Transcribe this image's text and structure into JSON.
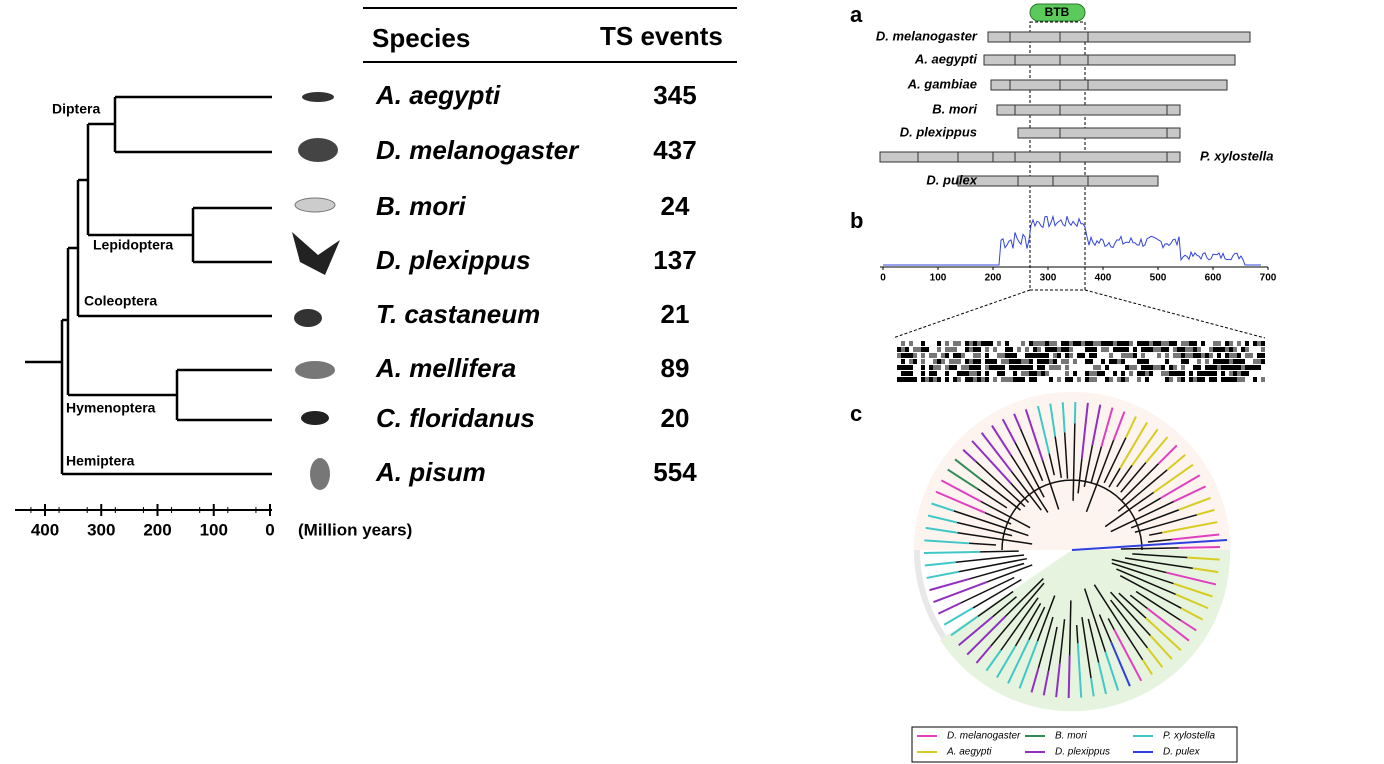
{
  "phylogeny": {
    "clades": [
      "Diptera",
      "Lepidoptera",
      "Coleoptera",
      "Hymenoptera",
      "Hemiptera"
    ],
    "axis": {
      "ticks": [
        400,
        300,
        200,
        100,
        0
      ],
      "label": "(Million years)"
    }
  },
  "table": {
    "headers": [
      "Species",
      "TS events"
    ],
    "rows": [
      [
        "A. aegypti",
        345
      ],
      [
        "D. melanogaster",
        437
      ],
      [
        "B. mori",
        24
      ],
      [
        "D. plexippus",
        137
      ],
      [
        "T. castaneum",
        21
      ],
      [
        "A. mellifera",
        89
      ],
      [
        "C. floridanus",
        20
      ],
      [
        "A. pisum",
        554
      ]
    ]
  },
  "panel_a": {
    "label": "a",
    "domain": "BTB",
    "proteins": [
      "D. melanogaster",
      "A. aegypti",
      "A. gambiae",
      "B. mori",
      "D. plexippus",
      "P. xylostella",
      "D. pulex"
    ]
  },
  "panel_b": {
    "label": "b",
    "xticks": [
      0,
      100,
      200,
      300,
      400,
      500,
      600,
      700
    ]
  },
  "panel_c": {
    "label": "c",
    "legend": [
      {
        "name": "D. melanogaster",
        "color": "#e040c0"
      },
      {
        "name": "B. mori",
        "color": "#2e8b57"
      },
      {
        "name": "P. xylostella",
        "color": "#40c8c8"
      },
      {
        "name": "A. aegypti",
        "color": "#d8cc20"
      },
      {
        "name": "D. plexippus",
        "color": "#9030c0"
      },
      {
        "name": "D. pulex",
        "color": "#3040e0"
      }
    ]
  }
}
